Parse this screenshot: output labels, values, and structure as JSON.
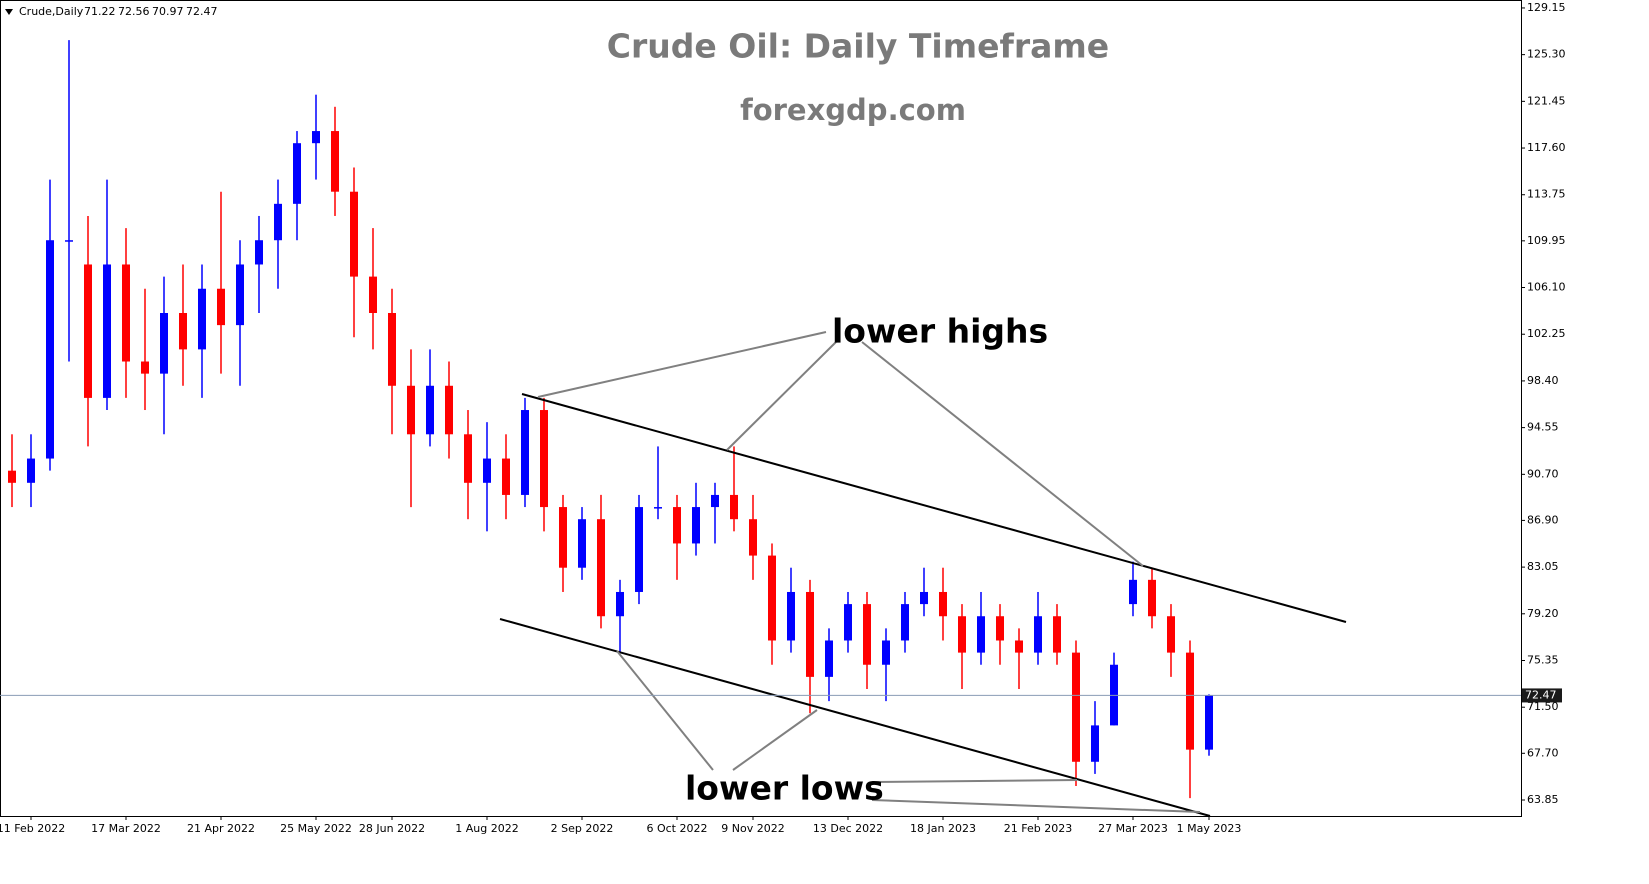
{
  "header": {
    "symbol": "Crude,Daily",
    "open": 71.22,
    "high": 72.56,
    "low": 70.97,
    "close": 72.47
  },
  "chart_data": {
    "type": "candlestick",
    "title": "Crude Oil: Daily Timeframe",
    "subtitle": "forexgdp.com",
    "annotations": [
      "lower highs",
      "lower lows"
    ],
    "categories": [
      null,
      "11 Feb 2022",
      null,
      null,
      null,
      null,
      "17 Mar 2022",
      null,
      null,
      null,
      null,
      "21 Apr 2022",
      null,
      null,
      null,
      null,
      "25 May 2022",
      null,
      null,
      null,
      "28 Jun 2022",
      null,
      null,
      null,
      null,
      "1 Aug 2022",
      null,
      null,
      null,
      null,
      "2 Sep 2022",
      null,
      null,
      null,
      null,
      "6 Oct 2022",
      null,
      null,
      null,
      "9 Nov 2022",
      null,
      null,
      null,
      null,
      "13 Dec 2022",
      null,
      null,
      null,
      null,
      "18 Jan 2023",
      null,
      null,
      null,
      null,
      "21 Feb 2023",
      null,
      null,
      null,
      null,
      "27 Mar 2023",
      null,
      null,
      null,
      "1 May 2023"
    ],
    "open": [
      91,
      90,
      92,
      110,
      108,
      97,
      108,
      100,
      99,
      104,
      101,
      106,
      103,
      108,
      110,
      113,
      118,
      119,
      114,
      107,
      104,
      98,
      94,
      98,
      94,
      90,
      92,
      89,
      96,
      88,
      83,
      87,
      79,
      81,
      88,
      88,
      85,
      88,
      89,
      87,
      84,
      77,
      81,
      74,
      77,
      80,
      75,
      77,
      80,
      81,
      79,
      76,
      79,
      77,
      76,
      79,
      76,
      67,
      70,
      80,
      82,
      79,
      76,
      68
    ],
    "high": [
      94,
      94,
      115,
      126.5,
      112,
      115,
      111,
      106,
      107,
      108,
      108,
      114,
      110,
      112,
      115,
      119,
      122,
      121,
      116,
      111,
      106,
      101,
      101,
      100,
      96,
      95,
      94,
      97,
      97,
      89,
      88,
      89,
      82,
      89,
      93,
      89,
      90,
      90,
      93,
      89,
      85,
      83,
      82,
      78,
      81,
      81,
      78,
      81,
      83,
      83,
      80,
      81,
      80,
      78,
      81,
      80,
      77,
      72,
      76,
      83.5,
      83,
      80,
      77,
      72.56
    ],
    "low": [
      88,
      88,
      91,
      100,
      93,
      96,
      97,
      96,
      94,
      98,
      97,
      99,
      98,
      104,
      106,
      110,
      115,
      112,
      102,
      101,
      94,
      88,
      93,
      92,
      87,
      86,
      87,
      88,
      86,
      81,
      82,
      78,
      76,
      80,
      87,
      82,
      84,
      85,
      86,
      82,
      75,
      76,
      71,
      72,
      76,
      73,
      72,
      76,
      79,
      77,
      73,
      75,
      75,
      73,
      75,
      75,
      65,
      66,
      70,
      79,
      78,
      74,
      64,
      67.5
    ],
    "close": [
      90,
      92,
      110,
      110,
      97,
      108,
      100,
      99,
      104,
      101,
      106,
      103,
      108,
      110,
      113,
      118,
      119,
      114,
      107,
      104,
      98,
      94,
      98,
      94,
      90,
      92,
      89,
      96,
      88,
      83,
      87,
      79,
      81,
      88,
      88,
      85,
      88,
      89,
      87,
      84,
      77,
      81,
      74,
      77,
      80,
      75,
      77,
      80,
      81,
      79,
      76,
      79,
      77,
      76,
      79,
      76,
      67,
      70,
      75,
      82,
      79,
      76,
      68,
      72.47
    ],
    "up_color": "#0000ff",
    "down_color": "#ff0000",
    "last_price": 72.47,
    "last_price_color": "#8a9bb5",
    "ylim": [
      62.53,
      129.64
    ],
    "yticks": [
      63.85,
      {
        "value": 67.7,
        "label": "67.70"
      },
      {
        "value": 71.5,
        "label": "71.50"
      },
      75.35,
      {
        "value": 79.2,
        "label": "79.20"
      },
      83.05,
      {
        "value": 86.9,
        "label": "86.90"
      },
      {
        "value": 90.7,
        "label": "90.70"
      },
      94.55,
      {
        "value": 98.4,
        "label": "98.40"
      },
      102.25,
      {
        "value": 106.1,
        "label": "106.10"
      },
      109.95,
      113.75,
      {
        "value": 117.6,
        "label": "117.60"
      },
      121.45,
      {
        "value": 125.3,
        "label": "125.30"
      },
      129.15
    ],
    "grid": false
  }
}
